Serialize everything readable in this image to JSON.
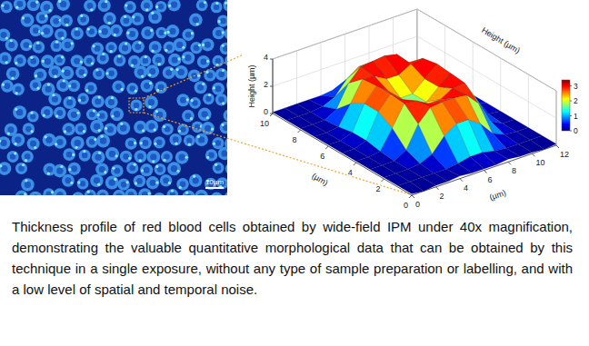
{
  "image": {
    "scale_bar": "10µm"
  },
  "chart_data": {
    "type": "surface",
    "x": [
      0,
      1,
      2,
      3,
      4,
      5,
      6,
      7,
      8,
      9,
      10,
      11,
      12
    ],
    "y": [
      0,
      1,
      2,
      3,
      4,
      5,
      6,
      7,
      8,
      9,
      10
    ],
    "z": [
      [
        0.1,
        0.0,
        0.1,
        0.1,
        0.2,
        0.1,
        0.1,
        0.1,
        0.2,
        0.1,
        0.1,
        0.0,
        0.1
      ],
      [
        0.1,
        0.1,
        0.1,
        0.1,
        0.1,
        0.2,
        0.4,
        0.4,
        0.2,
        0.1,
        0.1,
        0.1,
        0.1
      ],
      [
        0.1,
        0.1,
        0.1,
        0.2,
        0.6,
        1.6,
        2.2,
        2.2,
        1.6,
        0.6,
        0.2,
        0.1,
        0.1
      ],
      [
        0.1,
        0.1,
        0.1,
        0.6,
        2.2,
        3.1,
        3.2,
        3.2,
        3.1,
        2.2,
        0.6,
        0.1,
        0.1
      ],
      [
        0.1,
        0.1,
        0.2,
        1.6,
        3.1,
        3.0,
        2.5,
        2.5,
        3.0,
        3.1,
        1.6,
        0.2,
        0.1
      ],
      [
        0.1,
        0.1,
        0.4,
        2.2,
        3.2,
        2.5,
        1.7,
        1.7,
        2.5,
        3.2,
        2.2,
        0.4,
        0.1
      ],
      [
        0.1,
        0.1,
        0.4,
        2.2,
        3.2,
        2.5,
        1.7,
        1.7,
        2.5,
        3.3,
        2.2,
        0.4,
        0.1
      ],
      [
        0.1,
        0.1,
        0.2,
        1.6,
        3.1,
        3.0,
        2.5,
        2.5,
        3.0,
        3.1,
        1.6,
        0.2,
        0.1
      ],
      [
        0.1,
        0.1,
        0.1,
        0.6,
        2.2,
        3.1,
        3.2,
        3.3,
        3.1,
        2.2,
        0.6,
        0.1,
        0.1
      ],
      [
        0.1,
        0.1,
        0.1,
        0.2,
        0.6,
        1.6,
        2.2,
        2.2,
        1.6,
        0.6,
        0.2,
        0.1,
        0.1
      ],
      [
        0.1,
        0.1,
        0.1,
        0.1,
        0.1,
        0.2,
        0.4,
        0.4,
        0.2,
        0.1,
        0.1,
        0.1,
        0.1
      ]
    ],
    "xlabel": "(µm)",
    "ylabel": "(µm)",
    "zlabel": "Height (µm)",
    "xlim": [
      0,
      12
    ],
    "ylim": [
      0,
      10
    ],
    "zlim": [
      0,
      4
    ],
    "xticks": [
      0,
      2,
      4,
      6,
      8,
      10,
      12
    ],
    "yticks": [
      0,
      2,
      4,
      6,
      8,
      10
    ],
    "zticks": [
      0,
      2,
      4
    ],
    "grid": true,
    "colorbar": {
      "range": [
        0,
        3.4
      ],
      "ticks": [
        0,
        1,
        2,
        3
      ]
    }
  },
  "caption": "Thickness profile of red blood cells obtained by wide-field IPM under 40x magnification, demonstrating the valuable quantitative morphological data that can be obtained by this technique in a single exposure, without any type of sample preparation or labelling, and with a low level of spatial and temporal noise."
}
